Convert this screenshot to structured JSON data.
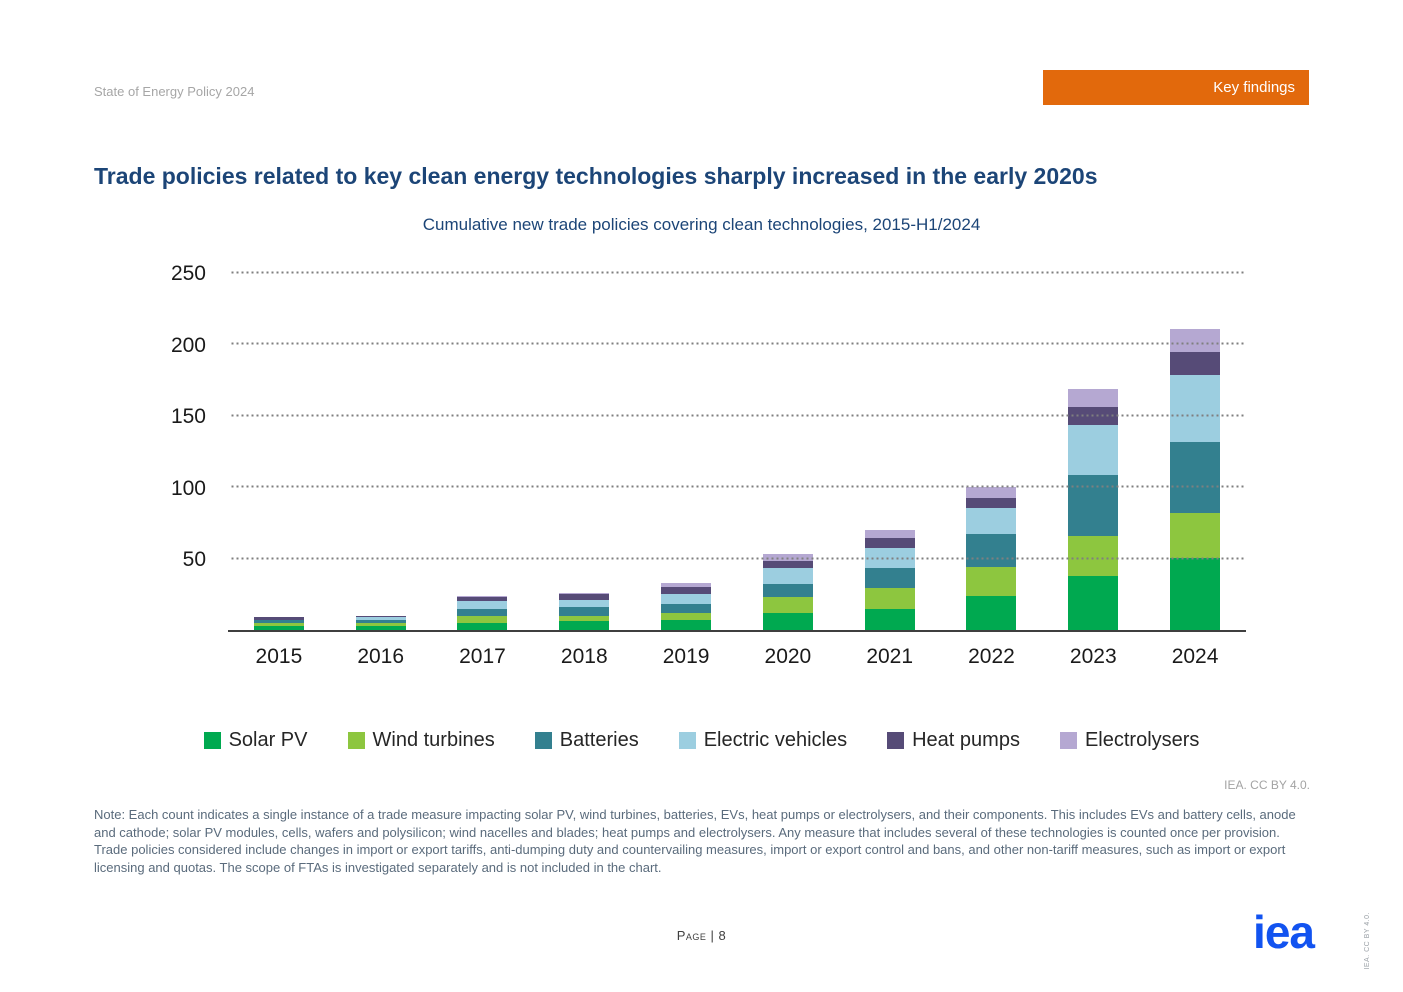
{
  "header": {
    "doc_label": "State of Energy Policy 2024",
    "key_findings_label": "Key findings"
  },
  "chart_data": {
    "type": "bar",
    "stacked": true,
    "title": "Trade policies related to key clean energy technologies sharply increased in the early 2020s",
    "subtitle": "Cumulative new trade policies covering clean technologies, 2015-H1/2024",
    "categories": [
      "2015",
      "2016",
      "2017",
      "2018",
      "2019",
      "2020",
      "2021",
      "2022",
      "2023",
      "2024"
    ],
    "series": [
      {
        "name": "Solar PV",
        "color": "#00a950",
        "values": [
          3,
          3,
          5,
          6,
          7,
          12,
          15,
          24,
          38,
          50
        ]
      },
      {
        "name": "Wind turbines",
        "color": "#8dc63f",
        "values": [
          2,
          2,
          5,
          4,
          5,
          11,
          14,
          20,
          28,
          32
        ]
      },
      {
        "name": "Batteries",
        "color": "#33808f",
        "values": [
          2,
          2,
          5,
          6,
          6,
          9,
          14,
          23,
          42,
          49
        ]
      },
      {
        "name": "Electric vehicles",
        "color": "#9ccee0",
        "values": [
          0,
          2,
          5,
          5,
          7,
          11,
          14,
          18,
          35,
          47
        ]
      },
      {
        "name": "Heat pumps",
        "color": "#564b77",
        "values": [
          2,
          1,
          3,
          4,
          5,
          5,
          7,
          7,
          13,
          16
        ]
      },
      {
        "name": "Electrolysers",
        "color": "#b5a8d2",
        "values": [
          0,
          0,
          1,
          1,
          3,
          5,
          6,
          8,
          12,
          16
        ]
      }
    ],
    "totals": [
      9,
      10,
      24,
      26,
      33,
      53,
      70,
      100,
      168,
      210
    ],
    "xlabel": "",
    "ylabel": "",
    "ylim": [
      0,
      250
    ],
    "yticks": [
      50,
      100,
      150,
      200,
      250
    ],
    "grid": "horizontal-dotted",
    "grid_color": "#7f7f7f",
    "legend_position": "bottom"
  },
  "attribution": "IEA. CC BY 4.0.",
  "note": "Note: Each count indicates a single instance of a trade measure impacting solar PV, wind turbines, batteries, EVs, heat pumps or electrolysers, and their components. This includes EVs and battery cells, anode and cathode; solar PV modules, cells, wafers and polysilicon; wind nacelles and blades; heat pumps and electrolysers. Any measure that includes several of these technologies is counted once per provision. Trade policies considered include changes in import or export tariffs, anti-dumping duty and countervailing measures, import or export control and bans, and other non-tariff measures, such as import or export licensing and quotas. The scope of FTAs is investigated separately and is not included in the chart.",
  "footer": {
    "page_label": "Page | 8",
    "logo_text": "iea",
    "side_label": "IEA. CC BY 4.0."
  }
}
